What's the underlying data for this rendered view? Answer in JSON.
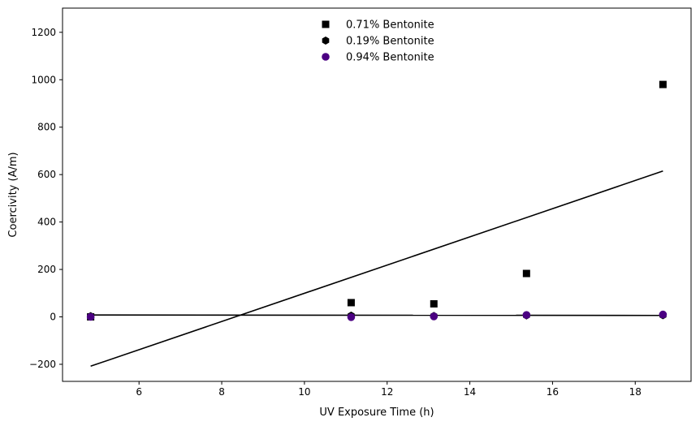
{
  "chart_data": {
    "type": "scatter",
    "xlabel": "UV Exposure Time (h)",
    "ylabel": "Coercivity (A/m)",
    "xlim": [
      4.15,
      19.35
    ],
    "ylim": [
      -272,
      1302
    ],
    "xticks": [
      6,
      8,
      10,
      12,
      14,
      16,
      18
    ],
    "yticks": [
      -200,
      0,
      200,
      400,
      600,
      800,
      1000,
      1200
    ],
    "xtick_labels": [
      "6",
      "8",
      "10",
      "12",
      "14",
      "16",
      "18"
    ],
    "ytick_labels": [
      "−200",
      "0",
      "200",
      "400",
      "600",
      "800",
      "1000",
      "1200"
    ],
    "grid": false,
    "legend_position": "top-center",
    "series": [
      {
        "name": "0.71% Bentonite",
        "marker": "square",
        "color": "#000000",
        "x": [
          4.83,
          11.13,
          13.13,
          15.37,
          18.67
        ],
        "y": [
          0,
          60,
          55,
          183,
          980
        ]
      },
      {
        "name": "0.19% Bentonite",
        "marker": "hexagon",
        "color": "#000000",
        "x": [
          4.83,
          11.13,
          13.13,
          15.37,
          18.67
        ],
        "y": [
          3,
          5,
          4,
          6,
          7
        ]
      },
      {
        "name": "0.94% Bentonite",
        "marker": "circle",
        "color": "#4b0082",
        "x": [
          4.83,
          11.13,
          13.13,
          15.37,
          18.67
        ],
        "y": [
          0,
          -1,
          2,
          8,
          10
        ]
      }
    ],
    "fit_lines": [
      {
        "x": [
          4.83,
          18.67
        ],
        "y": [
          -208,
          615
        ],
        "color": "#000000"
      },
      {
        "x": [
          4.83,
          18.67
        ],
        "y": [
          8,
          6
        ],
        "color": "#000000"
      }
    ]
  }
}
